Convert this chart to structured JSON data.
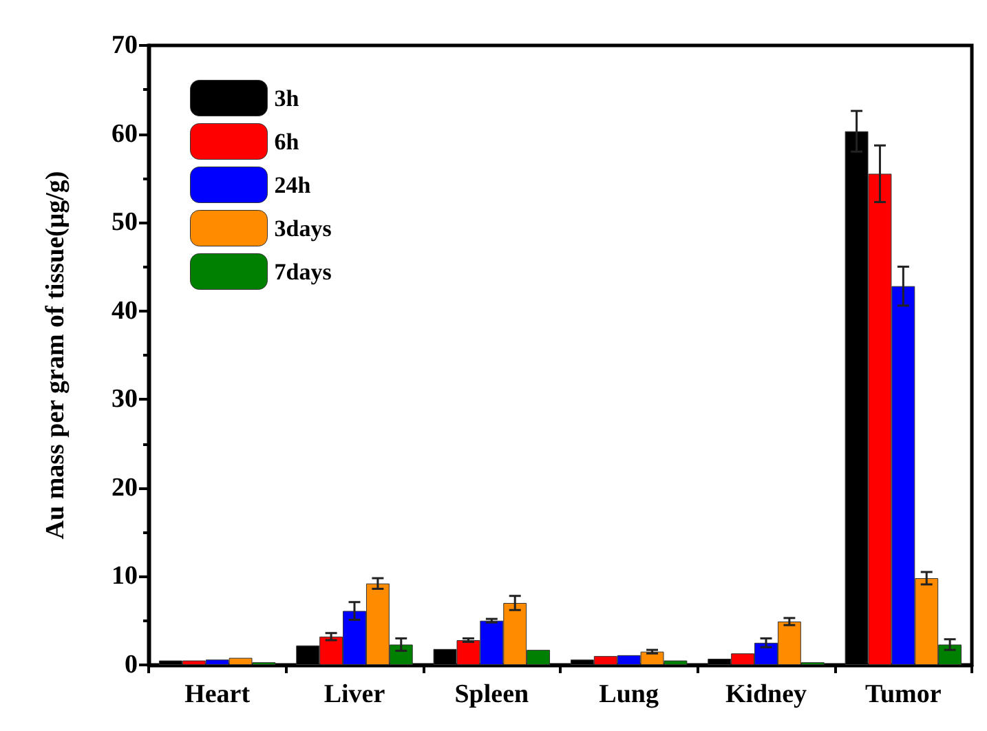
{
  "chart_data": {
    "type": "bar",
    "ylabel": "Au mass per gram of tissue(μg/g)",
    "categories": [
      "Heart",
      "Liver",
      "Spleen",
      "Lung",
      "Kidney",
      "Tumor"
    ],
    "series": [
      {
        "name": "3h",
        "color": "#000000",
        "values": [
          0.5,
          2.2,
          1.8,
          0.6,
          0.7,
          60.3
        ],
        "errors": [
          null,
          null,
          null,
          null,
          null,
          2.3
        ]
      },
      {
        "name": "6h",
        "color": "#ff0000",
        "values": [
          0.5,
          3.2,
          2.8,
          1.0,
          1.3,
          55.5
        ],
        "errors": [
          null,
          0.4,
          0.2,
          null,
          null,
          3.2
        ]
      },
      {
        "name": "24h",
        "color": "#0000ff",
        "values": [
          0.6,
          6.1,
          5.0,
          1.1,
          2.5,
          42.8
        ],
        "errors": [
          null,
          1.0,
          0.2,
          null,
          0.5,
          2.2
        ]
      },
      {
        "name": "3days",
        "color": "#ff8c00",
        "values": [
          0.8,
          9.2,
          7.0,
          1.5,
          4.9,
          9.8
        ],
        "errors": [
          null,
          0.6,
          0.8,
          0.2,
          0.4,
          0.7
        ]
      },
      {
        "name": "7days",
        "color": "#008000",
        "values": [
          0.3,
          2.3,
          1.7,
          0.5,
          0.3,
          2.3
        ],
        "errors": [
          null,
          0.7,
          null,
          null,
          null,
          0.6
        ]
      }
    ],
    "ylim": [
      0,
      70
    ],
    "yticks": [
      0,
      10,
      20,
      30,
      40,
      50,
      60,
      70
    ],
    "grid": false,
    "legend": "top left"
  }
}
